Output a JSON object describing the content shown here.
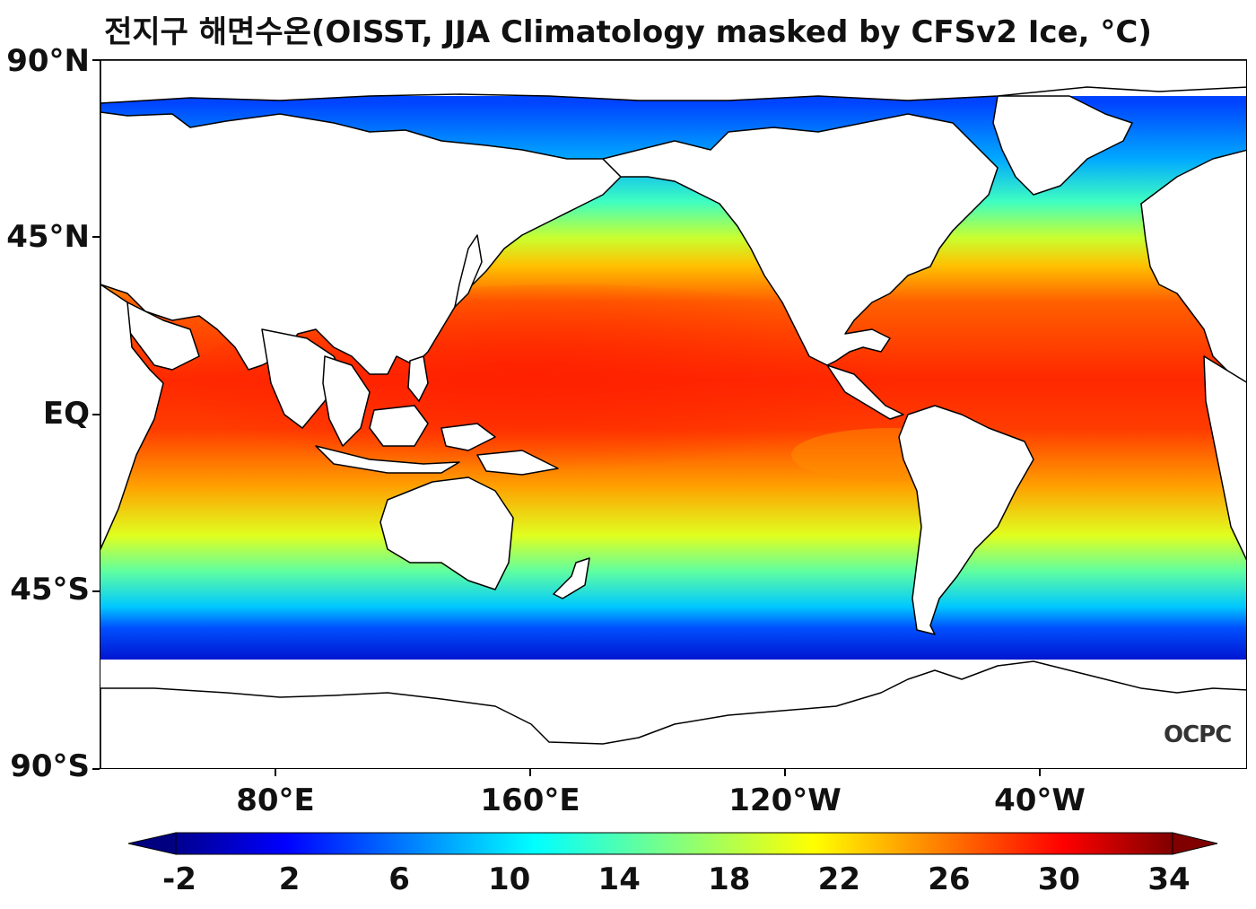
{
  "title": "전지구 해면수온(OISST, JJA Climatology masked by CFSv2 Ice, °C)",
  "map": {
    "projection": "equirectangular",
    "central_longitude": 160,
    "lat_range": [
      -90,
      90
    ],
    "lat_labels": [
      "90°N",
      "45°N",
      "EQ",
      "45°S",
      "90°S"
    ],
    "lon_labels": [
      "80°E",
      "160°E",
      "120°W",
      "40°W"
    ],
    "land_color": "#ffffff",
    "coastline_color": "#000000"
  },
  "colorbar": {
    "colormap": "jet",
    "min": -2,
    "max": 34,
    "ticks": [
      "-2",
      "2",
      "6",
      "10",
      "14",
      "18",
      "22",
      "26",
      "30",
      "34"
    ],
    "extend": "both"
  },
  "logo": "OCPC"
}
